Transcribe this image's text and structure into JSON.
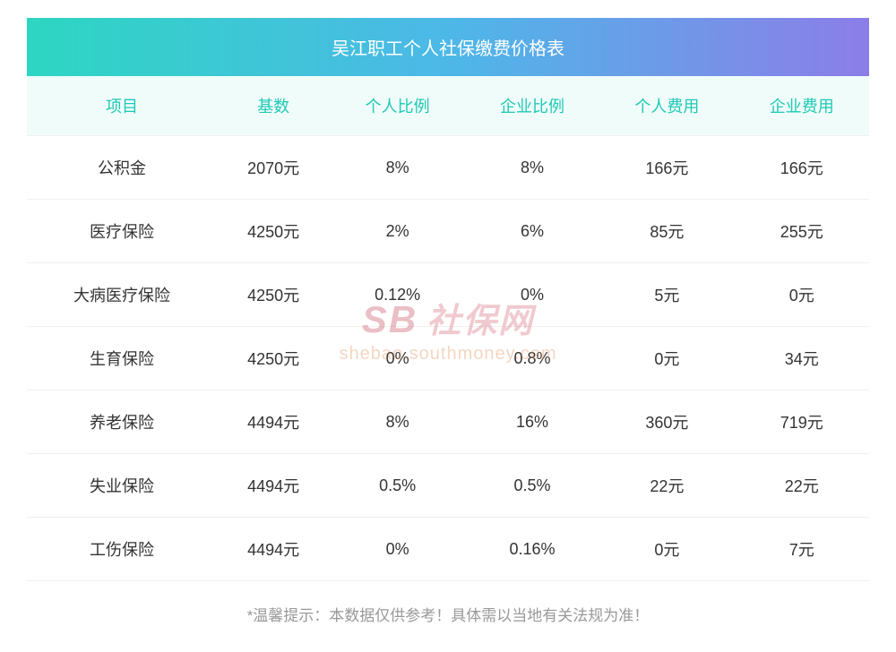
{
  "title": "吴江职工个人社保缴费价格表",
  "columns": [
    "项目",
    "基数",
    "个人比例",
    "企业比例",
    "个人费用",
    "企业费用"
  ],
  "rows": [
    [
      "公积金",
      "2070元",
      "8%",
      "8%",
      "166元",
      "166元"
    ],
    [
      "医疗保险",
      "4250元",
      "2%",
      "6%",
      "85元",
      "255元"
    ],
    [
      "大病医疗保险",
      "4250元",
      "0.12%",
      "0%",
      "5元",
      "0元"
    ],
    [
      "生育保险",
      "4250元",
      "0%",
      "0.8%",
      "0元",
      "34元"
    ],
    [
      "养老保险",
      "4494元",
      "8%",
      "16%",
      "360元",
      "719元"
    ],
    [
      "失业保险",
      "4494元",
      "0.5%",
      "0.5%",
      "22元",
      "22元"
    ],
    [
      "工伤保险",
      "4494元",
      "0%",
      "0.16%",
      "0元",
      "7元"
    ]
  ],
  "footer": "*温馨提示：本数据仅供参考！具体需以当地有关法规为准！",
  "watermark": {
    "brand_short": "SB",
    "brand_cn": "社保网",
    "url": "shebao.southmoney.com"
  },
  "styling": {
    "title_gradient_start": "#2dd6c2",
    "title_gradient_mid": "#4db8e8",
    "title_gradient_end": "#8c7de8",
    "header_bg": "#f0fcfa",
    "header_color": "#1fc9b5",
    "cell_color": "#333333",
    "border_color": "#f0f0f0",
    "footer_color": "#999999",
    "title_fontsize": 20,
    "header_fontsize": 18,
    "cell_fontsize": 18,
    "footer_fontsize": 17
  }
}
